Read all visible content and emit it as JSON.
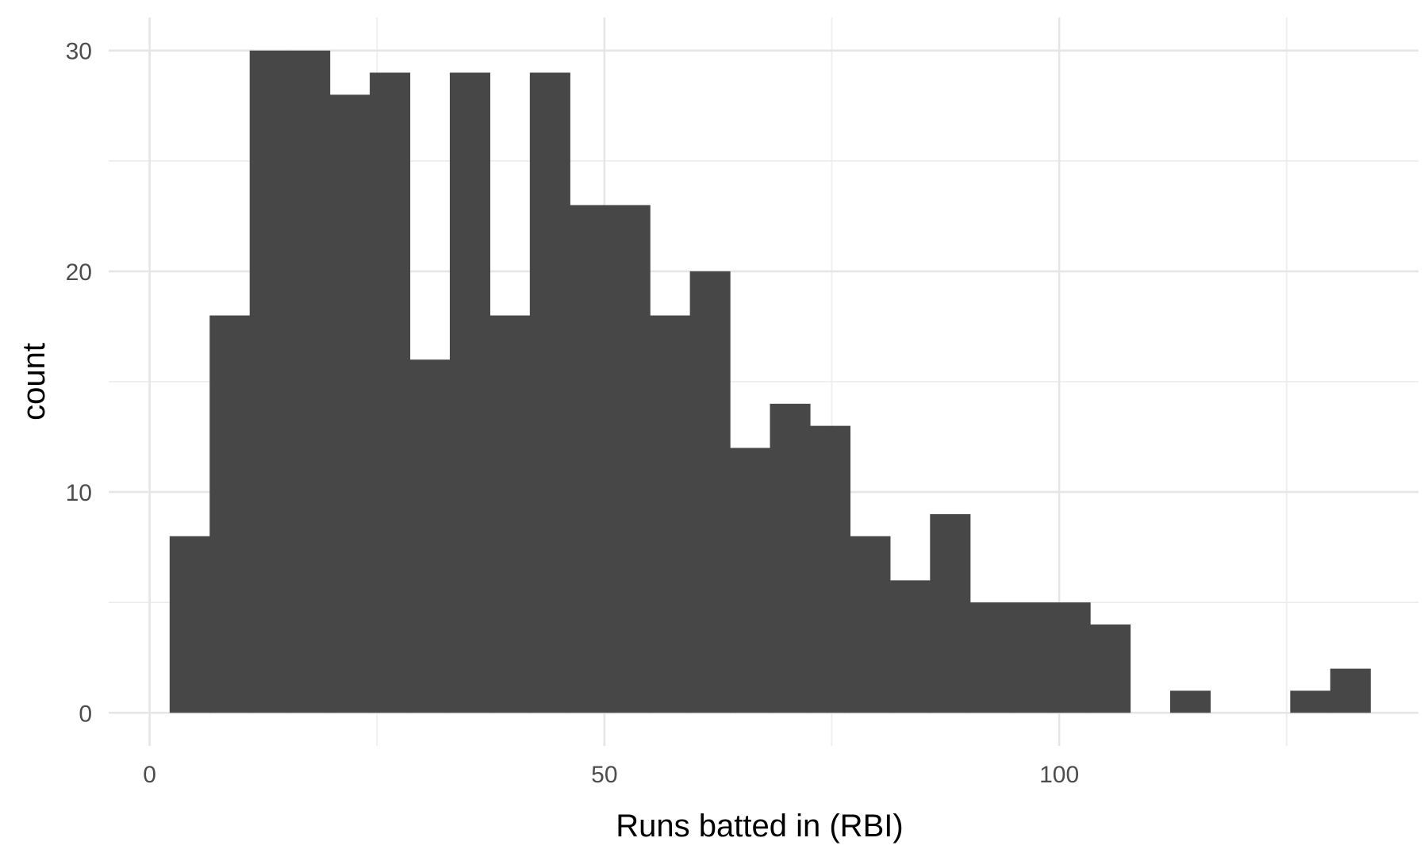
{
  "chart_data": {
    "type": "bar",
    "xlabel": "Runs batted in (RBI)",
    "ylabel": "count",
    "xlim": [
      -4.5,
      139.5
    ],
    "ylim": [
      -1.5,
      31.5
    ],
    "x_ticks": [
      0,
      50,
      100
    ],
    "x_minor_ticks": [
      25,
      75,
      125
    ],
    "y_ticks": [
      0,
      10,
      20,
      30
    ],
    "y_minor_ticks": [
      5,
      15,
      25
    ],
    "grid": true,
    "legend": "none",
    "bar_color": "#474747",
    "bins": [
      {
        "x0": 2.2,
        "x1": 6.6,
        "count": 8
      },
      {
        "x0": 6.6,
        "x1": 11.0,
        "count": 18
      },
      {
        "x0": 11.0,
        "x1": 15.4,
        "count": 30
      },
      {
        "x0": 15.4,
        "x1": 19.8,
        "count": 30
      },
      {
        "x0": 19.8,
        "x1": 24.2,
        "count": 28
      },
      {
        "x0": 24.2,
        "x1": 28.6,
        "count": 29
      },
      {
        "x0": 28.6,
        "x1": 33.0,
        "count": 16
      },
      {
        "x0": 33.0,
        "x1": 37.4,
        "count": 29
      },
      {
        "x0": 37.4,
        "x1": 41.8,
        "count": 18
      },
      {
        "x0": 41.8,
        "x1": 46.2,
        "count": 29
      },
      {
        "x0": 46.2,
        "x1": 50.6,
        "count": 23
      },
      {
        "x0": 50.6,
        "x1": 55.0,
        "count": 23
      },
      {
        "x0": 55.0,
        "x1": 59.4,
        "count": 18
      },
      {
        "x0": 59.4,
        "x1": 63.8,
        "count": 20
      },
      {
        "x0": 63.8,
        "x1": 68.2,
        "count": 12
      },
      {
        "x0": 68.2,
        "x1": 72.6,
        "count": 14
      },
      {
        "x0": 72.6,
        "x1": 77.0,
        "count": 13
      },
      {
        "x0": 77.0,
        "x1": 81.4,
        "count": 8
      },
      {
        "x0": 81.4,
        "x1": 85.8,
        "count": 6
      },
      {
        "x0": 85.8,
        "x1": 90.2,
        "count": 9
      },
      {
        "x0": 90.2,
        "x1": 94.6,
        "count": 5
      },
      {
        "x0": 94.6,
        "x1": 99.0,
        "count": 5
      },
      {
        "x0": 99.0,
        "x1": 103.4,
        "count": 5
      },
      {
        "x0": 103.4,
        "x1": 107.8,
        "count": 4
      },
      {
        "x0": 107.8,
        "x1": 112.2,
        "count": 0
      },
      {
        "x0": 112.2,
        "x1": 116.6,
        "count": 1
      },
      {
        "x0": 116.6,
        "x1": 121.0,
        "count": 0
      },
      {
        "x0": 121.0,
        "x1": 125.4,
        "count": 0
      },
      {
        "x0": 125.4,
        "x1": 129.8,
        "count": 1
      },
      {
        "x0": 129.8,
        "x1": 134.2,
        "count": 2
      }
    ]
  }
}
